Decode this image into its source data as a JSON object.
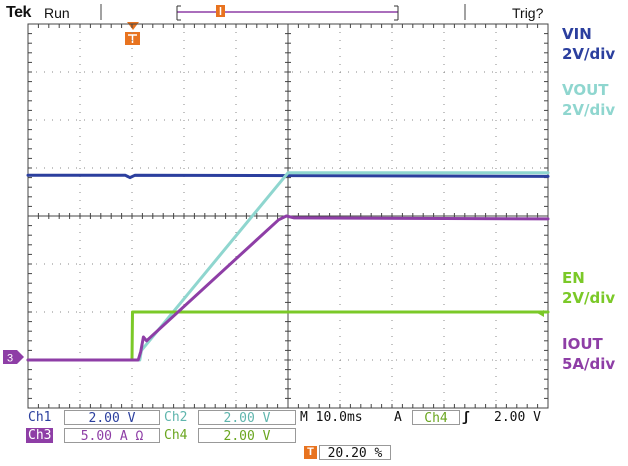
{
  "header": {
    "brand": "Tek",
    "state": "Run",
    "trigger_status": "Trig?"
  },
  "chart_data": {
    "type": "line",
    "title": "",
    "xlabel": "",
    "ylabel": "",
    "grid": true,
    "x_divisions": 10,
    "y_divisions": 8,
    "xlim": [
      -20.2,
      79.8
    ],
    "x_unit": "ms",
    "series": [
      {
        "name": "VIN",
        "scale_label": "2V/div",
        "color": "#2b3f9e",
        "x": [
          -20.2,
          -1.5,
          -0.6,
          0.4,
          79.8
        ],
        "y": [
          7.7,
          7.7,
          7.6,
          7.7,
          7.65
        ]
      },
      {
        "name": "VOUT",
        "scale_label": "2V/div",
        "color": "#8fd6cf",
        "x": [
          -20.2,
          1.3,
          1.6,
          29.8,
          79.8
        ],
        "y": [
          0.0,
          0.0,
          0.4,
          7.8,
          7.8
        ]
      },
      {
        "name": "EN",
        "scale_label": "2V/div",
        "color": "#7bc928",
        "x": [
          -20.2,
          -0.2,
          -0.1,
          79.8
        ],
        "y": [
          0.0,
          0.0,
          2.0,
          2.0
        ]
      },
      {
        "name": "IOUT",
        "scale_label": "5A/div",
        "color": "#8e3ea6",
        "x": [
          -20.2,
          1.0,
          1.5,
          2.0,
          2.6,
          3.0,
          28.0,
          29.5,
          31.0,
          79.8
        ],
        "y": [
          0.0,
          0.0,
          0.9,
          2.4,
          2.0,
          2.2,
          14.6,
          15.0,
          14.8,
          14.7
        ]
      }
    ]
  },
  "channel_status": {
    "ch1_name": "Ch1",
    "ch1_scale": "2.00 V",
    "ch2_name": "Ch2",
    "ch2_scale": "2.00 V",
    "ch3_name": "Ch3",
    "ch3_scale": "5.00 A Ω",
    "ch4_name": "Ch4",
    "ch4_scale": "2.00 V",
    "timebase": "M 10.0ms",
    "acq_mode": "A",
    "trig_source": "Ch4",
    "trig_slope_icon": "rising-edge-icon",
    "trig_slope_glyph": "ʃ",
    "trig_level": "2.00 V",
    "trig_position": "20.20 %"
  },
  "markers": {
    "ground_marker_3": "3",
    "trigger_marker_glyph": "T"
  },
  "colors": {
    "ch1": "#2b3f9e",
    "ch2": "#8fd6cf",
    "ch3": "#8e3ea6",
    "ch4": "#7bc928",
    "trigger": "#e8731f",
    "grid": "#444444"
  }
}
